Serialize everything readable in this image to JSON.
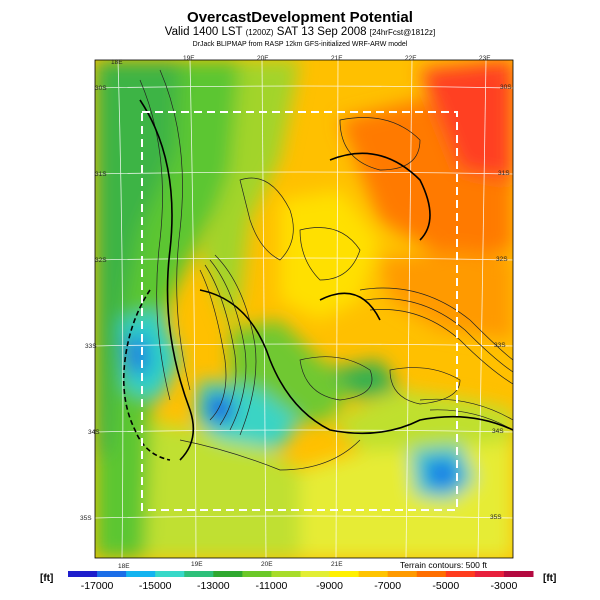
{
  "header": {
    "title": "OvercastDevelopment Potential",
    "valid_prefix": "Valid 1400 LST",
    "valid_zulu": "(1200Z)",
    "valid_date": "SAT 13 Sep 2008",
    "valid_fcst": "[24hrFcst@1812z]",
    "source": "DrJack BLIPMAP from RASP 12km GFS-initialized WRF-ARW model"
  },
  "map": {
    "lon_labels_top": [
      "18E",
      "19E",
      "20E",
      "21E",
      "22E",
      "23E"
    ],
    "lon_labels_bottom": [
      "18E",
      "19E",
      "20E",
      "21E"
    ],
    "lat_labels_left": [
      "30S",
      "31S",
      "32S",
      "33S",
      "34S",
      "35S"
    ],
    "lat_labels_right": [
      "30S",
      "31S",
      "32S",
      "33S",
      "34S",
      "35S"
    ],
    "terrain_note": "Terrain contours: 500 ft"
  },
  "colorbar": {
    "unit_left": "[ft]",
    "unit_right": "[ft]",
    "tick_labels": [
      "-17000",
      "-15000",
      "-13000",
      "-11000",
      "-9000",
      "-7000",
      "-5000",
      "-3000"
    ],
    "colors": [
      "#1e1ecc",
      "#1c6ee8",
      "#14b4f0",
      "#38d8c8",
      "#2ec07a",
      "#30a830",
      "#6cc828",
      "#a8dc2a",
      "#e2ee34",
      "#fff000",
      "#ffc400",
      "#ff9a00",
      "#ff6e00",
      "#ff3c1e",
      "#e8203c",
      "#b40a40"
    ]
  }
}
